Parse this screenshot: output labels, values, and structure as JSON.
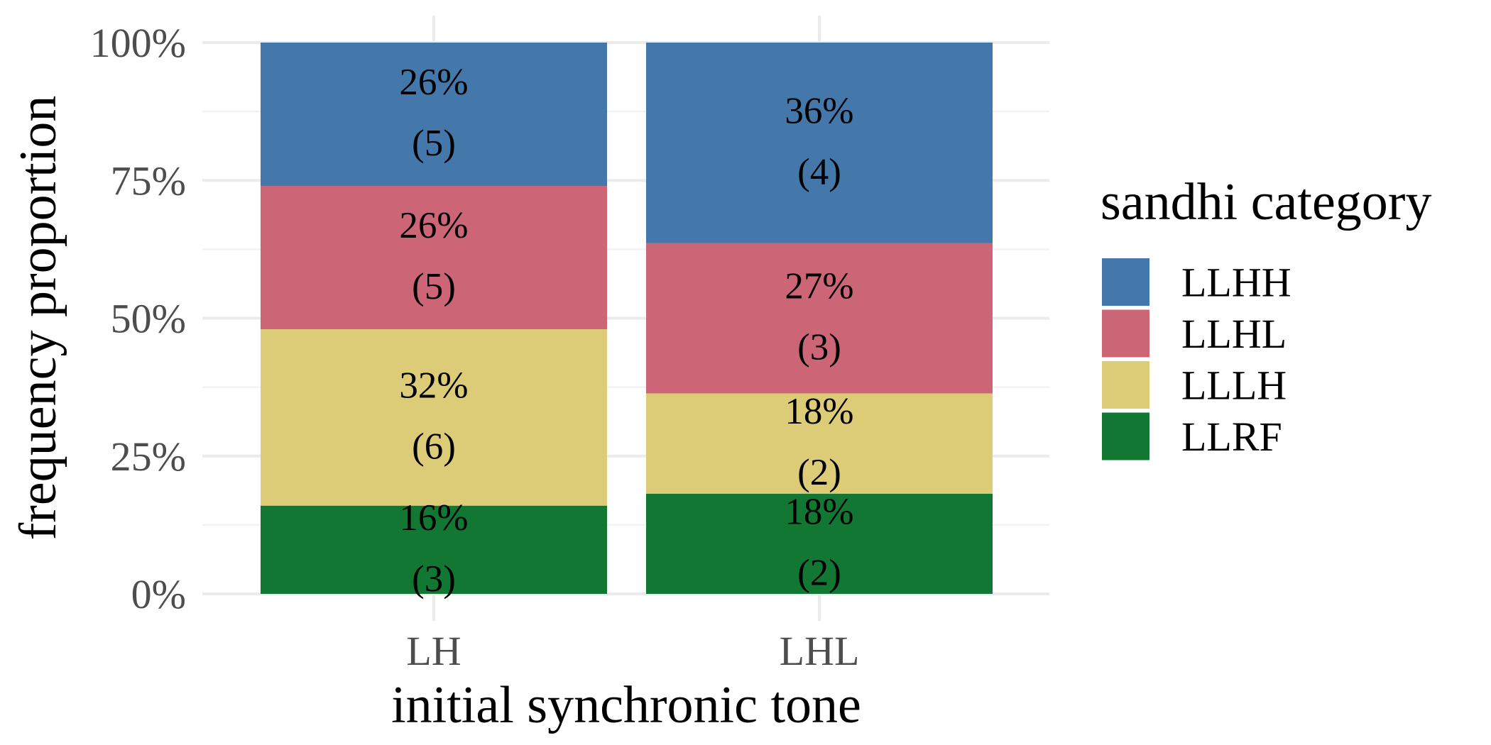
{
  "chart_data": {
    "type": "bar",
    "stacked": true,
    "categories": [
      "LH",
      "LHL"
    ],
    "series": [
      {
        "name": "LLRF",
        "color": "#117733",
        "values": [
          0.16,
          0.18
        ],
        "labels": [
          "16%",
          "18%"
        ],
        "counts": [
          "(3)",
          "(2)"
        ]
      },
      {
        "name": "LLLH",
        "color": "#DDCC77",
        "values": [
          0.32,
          0.18
        ],
        "labels": [
          "32%",
          "18%"
        ],
        "counts": [
          "(6)",
          "(2)"
        ]
      },
      {
        "name": "LLHL",
        "color": "#CC6677",
        "values": [
          0.26,
          0.27
        ],
        "labels": [
          "26%",
          "27%"
        ],
        "counts": [
          "(5)",
          "(3)"
        ]
      },
      {
        "name": "LLHH",
        "color": "#4477AA",
        "values": [
          0.26,
          0.36
        ],
        "labels": [
          "26%",
          "36%"
        ],
        "counts": [
          "(5)",
          "(4)"
        ]
      }
    ],
    "xlabel": "initial synchronic tone",
    "ylabel": "frequency proportion",
    "ylim": [
      0,
      1
    ],
    "yticks": [
      0,
      0.25,
      0.5,
      0.75,
      1.0
    ],
    "ytick_labels": [
      "0%",
      "25%",
      "50%",
      "75%",
      "100%"
    ],
    "legend": {
      "title": "sandhi category",
      "position": "right",
      "order": [
        "LLHH",
        "LLHL",
        "LLLH",
        "LLRF"
      ]
    },
    "grid": true
  }
}
